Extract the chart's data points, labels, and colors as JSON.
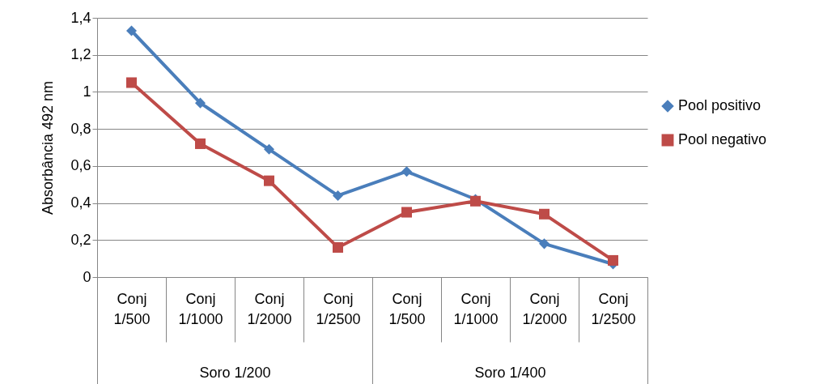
{
  "chart_data": {
    "type": "line",
    "ylabel": "Absorbância 492 nm",
    "categories": [
      "Conj 1/500",
      "Conj 1/1000",
      "Conj 1/2000",
      "Conj 1/2500",
      "Conj 1/500",
      "Conj 1/1000",
      "Conj 1/2000",
      "Conj 1/2500"
    ],
    "annotations": [
      "Soro 1/200",
      "Soro 1/400"
    ],
    "series": [
      {
        "name": "Pool positivo",
        "color": "#4a7ebb",
        "marker": "diamond",
        "values": [
          1.33,
          0.94,
          0.69,
          0.44,
          0.57,
          0.42,
          0.18,
          0.07
        ]
      },
      {
        "name": "Pool negativo",
        "color": "#be4b48",
        "marker": "square",
        "values": [
          1.05,
          0.72,
          0.52,
          0.16,
          0.35,
          0.41,
          0.34,
          0.09
        ]
      }
    ],
    "ylim": [
      0,
      1.4
    ],
    "yticks": [
      0,
      {
        "value": 0.2,
        "label": "0,2"
      },
      {
        "value": 0.4,
        "label": "0,4"
      },
      {
        "value": 0.6,
        "label": "0,6"
      },
      {
        "value": 0.8,
        "label": "0,8"
      },
      1,
      {
        "value": 1.2,
        "label": "1,2"
      },
      {
        "value": 1.4,
        "label": "1,4"
      }
    ],
    "grid": "y",
    "legend": "right",
    "line_style": "solid"
  }
}
